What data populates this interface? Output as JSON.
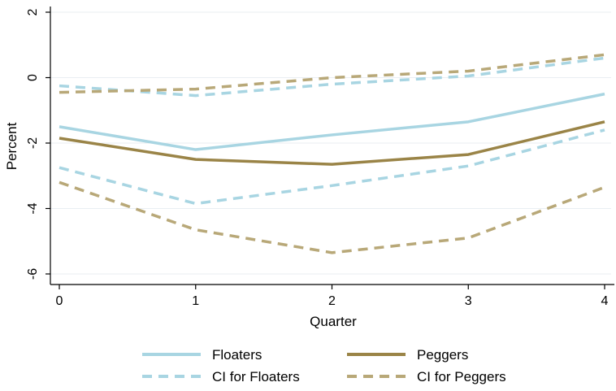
{
  "chart_data": {
    "type": "line",
    "x": [
      0,
      1,
      2,
      3,
      4
    ],
    "xlabel": "Quarter",
    "ylabel": "Percent",
    "xlim": [
      0,
      4
    ],
    "ylim": [
      -6,
      2
    ],
    "x_ticks": [
      "0",
      "1",
      "2",
      "3",
      "4"
    ],
    "y_ticks": [
      "-6",
      "-4",
      "-2",
      "0",
      "2"
    ],
    "grid": true,
    "legend_position": "bottom",
    "series": [
      {
        "name": "Floaters",
        "values": [
          -1.5,
          -2.2,
          -1.75,
          -1.35,
          -0.5
        ],
        "color": "#a8d5e2",
        "style": "solid"
      },
      {
        "name": "Peggers",
        "values": [
          -1.85,
          -2.5,
          -2.65,
          -2.35,
          -1.35
        ],
        "color": "#9a8447",
        "style": "solid"
      },
      {
        "name": "CI for Floaters",
        "values": [
          -0.25,
          -0.55,
          -0.2,
          0.05,
          0.6
        ],
        "color": "#a8d5e2",
        "style": "dashed"
      },
      {
        "name": "CI for Peggers",
        "values": [
          -0.45,
          -0.35,
          0.0,
          0.2,
          0.7
        ],
        "color": "#b8a878",
        "style": "dashed"
      },
      {
        "name": "",
        "values": [
          -2.75,
          -3.85,
          -3.3,
          -2.7,
          -1.6
        ],
        "color": "#a8d5e2",
        "style": "dashed"
      },
      {
        "name": "",
        "values": [
          -3.2,
          -4.65,
          -5.35,
          -4.9,
          -3.35
        ],
        "color": "#b8a878",
        "style": "dashed"
      }
    ]
  }
}
